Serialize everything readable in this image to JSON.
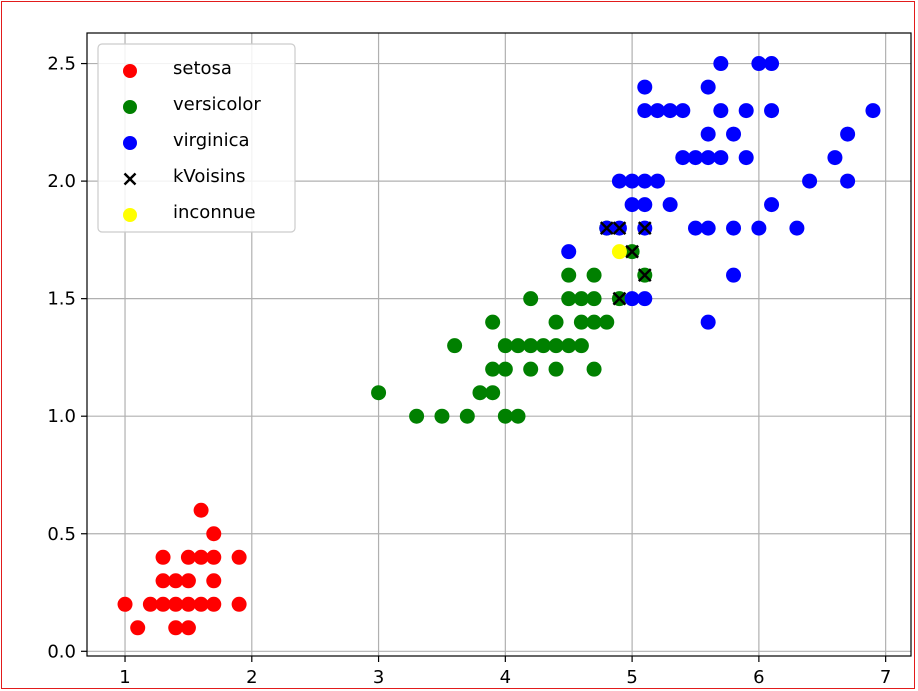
{
  "chart_data": {
    "type": "scatter",
    "title": "",
    "xlabel": "",
    "ylabel": "",
    "xlim": [
      0.7,
      7.2
    ],
    "ylim": [
      -0.02,
      2.63
    ],
    "grid": true,
    "legend_position": "top-left",
    "x_ticks": [
      1,
      2,
      3,
      4,
      5,
      6,
      7
    ],
    "x_tick_labels": [
      "1",
      "2",
      "3",
      "4",
      "5",
      "6",
      "7"
    ],
    "y_ticks": [
      0.0,
      0.5,
      1.0,
      1.5,
      2.0,
      2.5
    ],
    "y_tick_labels": [
      "0.0",
      "0.5",
      "1.0",
      "1.5",
      "2.0",
      "2.5"
    ],
    "series": [
      {
        "name": "setosa",
        "marker": "circle",
        "color": "#ff0000",
        "points": [
          [
            1.0,
            0.2
          ],
          [
            1.1,
            0.1
          ],
          [
            1.2,
            0.2
          ],
          [
            1.3,
            0.2
          ],
          [
            1.3,
            0.3
          ],
          [
            1.3,
            0.4
          ],
          [
            1.4,
            0.1
          ],
          [
            1.4,
            0.2
          ],
          [
            1.4,
            0.3
          ],
          [
            1.5,
            0.1
          ],
          [
            1.5,
            0.2
          ],
          [
            1.5,
            0.3
          ],
          [
            1.5,
            0.4
          ],
          [
            1.6,
            0.2
          ],
          [
            1.6,
            0.4
          ],
          [
            1.6,
            0.6
          ],
          [
            1.7,
            0.2
          ],
          [
            1.7,
            0.3
          ],
          [
            1.7,
            0.4
          ],
          [
            1.7,
            0.5
          ],
          [
            1.9,
            0.2
          ],
          [
            1.9,
            0.4
          ]
        ]
      },
      {
        "name": "versicolor",
        "marker": "circle",
        "color": "#008000",
        "points": [
          [
            3.0,
            1.1
          ],
          [
            3.3,
            1.0
          ],
          [
            3.5,
            1.0
          ],
          [
            3.6,
            1.3
          ],
          [
            3.7,
            1.0
          ],
          [
            3.8,
            1.1
          ],
          [
            3.9,
            1.1
          ],
          [
            3.9,
            1.2
          ],
          [
            3.9,
            1.4
          ],
          [
            4.0,
            1.0
          ],
          [
            4.0,
            1.2
          ],
          [
            4.0,
            1.3
          ],
          [
            4.1,
            1.0
          ],
          [
            4.1,
            1.3
          ],
          [
            4.2,
            1.2
          ],
          [
            4.2,
            1.3
          ],
          [
            4.2,
            1.5
          ],
          [
            4.3,
            1.3
          ],
          [
            4.4,
            1.2
          ],
          [
            4.4,
            1.3
          ],
          [
            4.4,
            1.4
          ],
          [
            4.5,
            1.3
          ],
          [
            4.5,
            1.5
          ],
          [
            4.5,
            1.6
          ],
          [
            4.6,
            1.3
          ],
          [
            4.6,
            1.4
          ],
          [
            4.6,
            1.5
          ],
          [
            4.7,
            1.2
          ],
          [
            4.7,
            1.4
          ],
          [
            4.7,
            1.5
          ],
          [
            4.7,
            1.6
          ],
          [
            4.8,
            1.4
          ],
          [
            4.8,
            1.8
          ],
          [
            4.9,
            1.5
          ],
          [
            5.0,
            1.7
          ],
          [
            5.1,
            1.6
          ]
        ]
      },
      {
        "name": "virginica",
        "marker": "circle",
        "color": "#0000ff",
        "points": [
          [
            4.5,
            1.7
          ],
          [
            4.8,
            1.8
          ],
          [
            4.9,
            1.8
          ],
          [
            4.9,
            2.0
          ],
          [
            5.0,
            1.5
          ],
          [
            5.0,
            1.9
          ],
          [
            5.0,
            2.0
          ],
          [
            5.1,
            1.5
          ],
          [
            5.1,
            1.8
          ],
          [
            5.1,
            1.9
          ],
          [
            5.1,
            2.0
          ],
          [
            5.1,
            2.3
          ],
          [
            5.1,
            2.4
          ],
          [
            5.2,
            2.0
          ],
          [
            5.2,
            2.3
          ],
          [
            5.3,
            1.9
          ],
          [
            5.3,
            2.3
          ],
          [
            5.4,
            2.1
          ],
          [
            5.4,
            2.3
          ],
          [
            5.5,
            1.8
          ],
          [
            5.5,
            2.1
          ],
          [
            5.6,
            1.4
          ],
          [
            5.6,
            1.8
          ],
          [
            5.6,
            2.1
          ],
          [
            5.6,
            2.2
          ],
          [
            5.6,
            2.4
          ],
          [
            5.7,
            2.1
          ],
          [
            5.7,
            2.3
          ],
          [
            5.7,
            2.5
          ],
          [
            5.8,
            1.6
          ],
          [
            5.8,
            1.8
          ],
          [
            5.8,
            2.2
          ],
          [
            5.9,
            2.1
          ],
          [
            5.9,
            2.3
          ],
          [
            6.0,
            1.8
          ],
          [
            6.0,
            2.5
          ],
          [
            6.1,
            1.9
          ],
          [
            6.1,
            2.3
          ],
          [
            6.1,
            2.5
          ],
          [
            6.3,
            1.8
          ],
          [
            6.4,
            2.0
          ],
          [
            6.6,
            2.1
          ],
          [
            6.7,
            2.0
          ],
          [
            6.7,
            2.2
          ],
          [
            6.9,
            2.3
          ]
        ]
      },
      {
        "name": "kVoisins",
        "marker": "x",
        "color": "#000000",
        "points": [
          [
            4.8,
            1.8
          ],
          [
            4.9,
            1.8
          ],
          [
            4.9,
            1.5
          ],
          [
            5.0,
            1.7
          ],
          [
            5.1,
            1.8
          ],
          [
            5.1,
            1.6
          ]
        ]
      },
      {
        "name": "inconnue",
        "marker": "circle",
        "color": "#ffff00",
        "points": [
          [
            4.9,
            1.7
          ]
        ]
      }
    ]
  }
}
